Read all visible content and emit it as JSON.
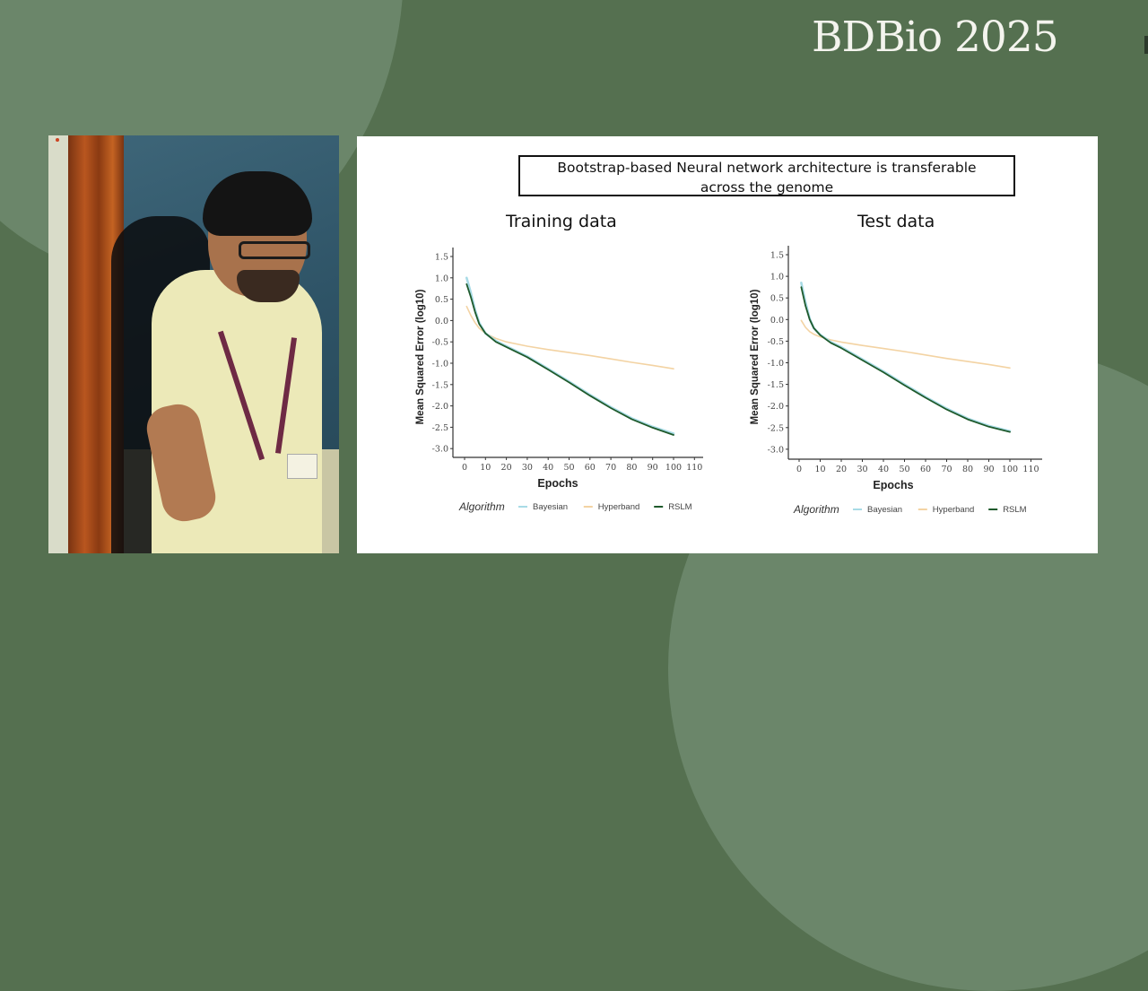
{
  "branding": {
    "event_name": "BDBio 2025"
  },
  "video": {
    "description": "Speaker standing in front of blackboard"
  },
  "slide": {
    "title_line1": "Bootstrap-based Neural network architecture is transferable",
    "title_line2": "across the genome"
  },
  "colors": {
    "background": "#557050",
    "background_blob": "#6b866a",
    "bayesian": "#a8dbe6",
    "hyperband": "#f3d3a3",
    "rslm": "#1f5a2c"
  },
  "chart_data": [
    {
      "type": "line",
      "title": "Training data",
      "xlabel": "Epochs",
      "ylabel": "Mean Squared Error (log10)",
      "xticks": [
        0,
        10,
        20,
        30,
        40,
        50,
        60,
        70,
        80,
        90,
        100,
        110
      ],
      "yticks": [
        1.5,
        1.0,
        0.5,
        0.0,
        -0.5,
        -1.0,
        -1.5,
        -2.0,
        -2.5,
        -3.0
      ],
      "xlim": [
        -5,
        113
      ],
      "ylim": [
        -3.2,
        1.6
      ],
      "grid": false,
      "legend_title": "Algorithm",
      "legend_position": "bottom",
      "x": [
        1,
        3,
        5,
        7,
        10,
        15,
        20,
        30,
        40,
        50,
        60,
        70,
        80,
        90,
        100
      ],
      "series": [
        {
          "name": "Bayesian",
          "values": [
            1.0,
            0.65,
            0.25,
            -0.05,
            -0.3,
            -0.48,
            -0.6,
            -0.84,
            -1.13,
            -1.43,
            -1.74,
            -2.03,
            -2.29,
            -2.49,
            -2.65
          ]
        },
        {
          "name": "Hyperband",
          "values": [
            0.33,
            0.12,
            -0.05,
            -0.18,
            -0.3,
            -0.42,
            -0.5,
            -0.6,
            -0.68,
            -0.75,
            -0.82,
            -0.9,
            -0.98,
            -1.05,
            -1.13
          ]
        },
        {
          "name": "RSLM",
          "values": [
            0.85,
            0.55,
            0.2,
            -0.08,
            -0.3,
            -0.5,
            -0.62,
            -0.86,
            -1.15,
            -1.45,
            -1.76,
            -2.05,
            -2.31,
            -2.51,
            -2.68
          ]
        }
      ]
    },
    {
      "type": "line",
      "title": "Test data",
      "xlabel": "Epochs",
      "ylabel": "Mean Squared Error (log10)",
      "xticks": [
        0,
        10,
        20,
        30,
        40,
        50,
        60,
        70,
        80,
        90,
        100,
        110
      ],
      "yticks": [
        1.5,
        1.0,
        0.5,
        0.0,
        -0.5,
        -1.0,
        -1.5,
        -2.0,
        -2.5,
        -3.0
      ],
      "xlim": [
        -5,
        113
      ],
      "ylim": [
        -3.2,
        1.6
      ],
      "grid": false,
      "legend_title": "Algorithm",
      "legend_position": "bottom",
      "x": [
        1,
        3,
        5,
        7,
        10,
        15,
        20,
        30,
        40,
        50,
        60,
        70,
        80,
        90,
        100
      ],
      "series": [
        {
          "name": "Bayesian",
          "values": [
            0.85,
            0.4,
            0.02,
            -0.2,
            -0.35,
            -0.52,
            -0.64,
            -0.92,
            -1.2,
            -1.5,
            -1.79,
            -2.06,
            -2.29,
            -2.46,
            -2.58
          ]
        },
        {
          "name": "Hyperband",
          "values": [
            -0.02,
            -0.18,
            -0.28,
            -0.34,
            -0.4,
            -0.47,
            -0.52,
            -0.6,
            -0.67,
            -0.74,
            -0.82,
            -0.9,
            -0.97,
            -1.04,
            -1.12
          ]
        },
        {
          "name": "RSLM",
          "values": [
            0.75,
            0.32,
            0.0,
            -0.2,
            -0.36,
            -0.54,
            -0.66,
            -0.94,
            -1.22,
            -1.52,
            -1.81,
            -2.08,
            -2.31,
            -2.48,
            -2.6
          ]
        }
      ]
    }
  ]
}
